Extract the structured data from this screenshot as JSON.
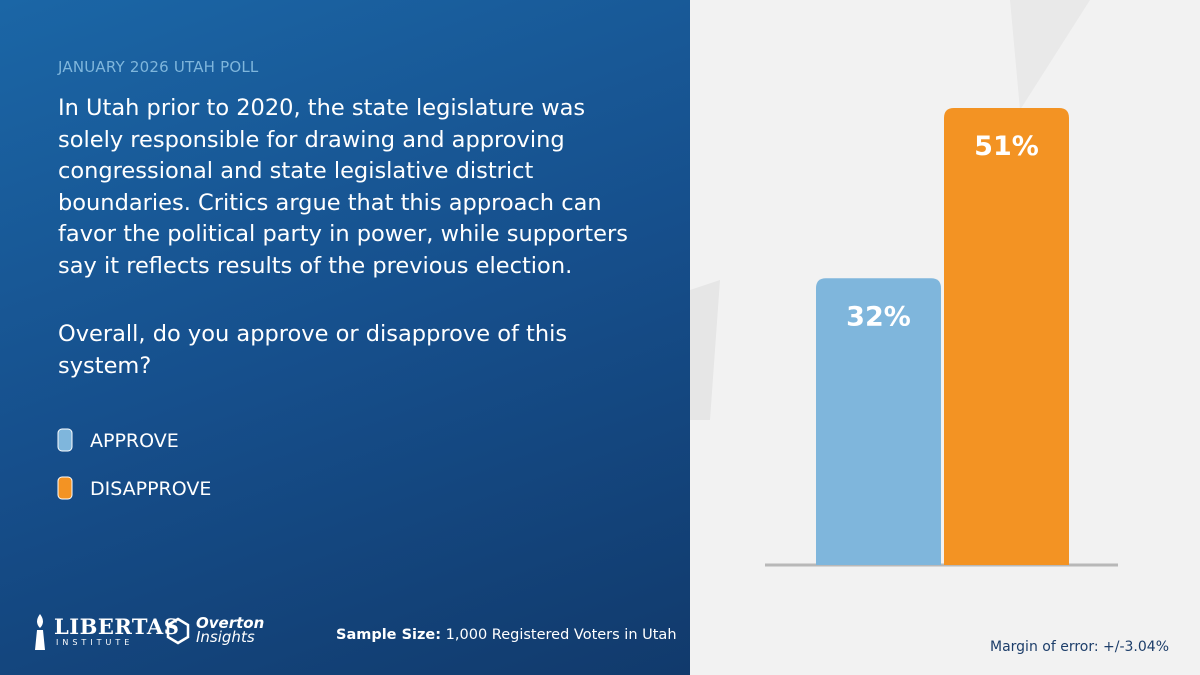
{
  "chart_data": {
    "type": "bar",
    "kicker": "JANUARY 2026 UTAH POLL",
    "title": "In Utah prior to 2020, the state legislature was solely responsible for drawing and approving congressional and state legislative district boundaries. Critics argue that this approach can favor the political party in power, while supporters say it reflects results of the previous election.",
    "subtitle": "Overall, do you approve or disapprove of this system?",
    "categories": [
      "APPROVE",
      "DISAPPROVE"
    ],
    "values": [
      32,
      51
    ],
    "value_labels": [
      "32%",
      "51%"
    ],
    "colors": [
      "#7fb6dc",
      "#f39323"
    ],
    "sample_size_label": "Sample Size:",
    "sample_size": "1,000 Registered Voters in Utah",
    "margin_of_error": "Margin of error: +/-3.04%",
    "logos": {
      "libertas": "LIBERTAS",
      "institute": "INSTITUTE",
      "overton": "Overton",
      "insights": "Insights"
    }
  }
}
